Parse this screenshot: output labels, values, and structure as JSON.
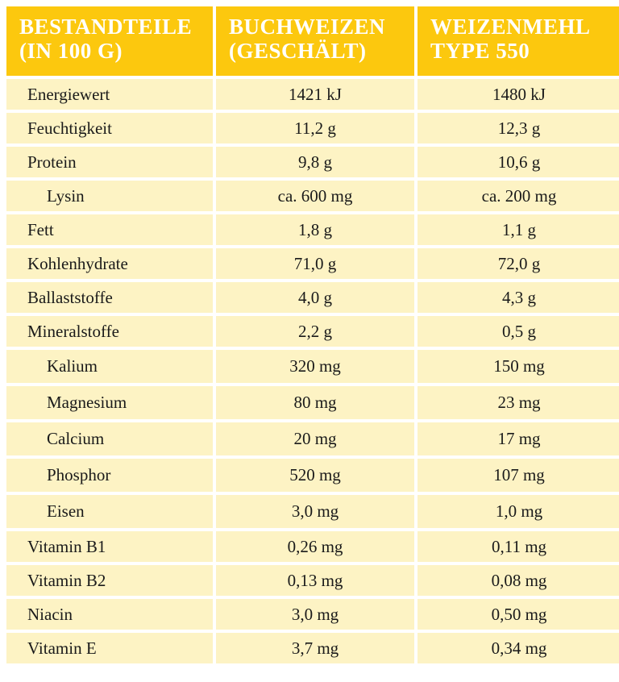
{
  "header": {
    "col1": "BESTANDTEILE (IN 100 G)",
    "col2": "BUCHWEIZEN (GESCHÄLT)",
    "col3": "WEIZENMEHL TYPE 550"
  },
  "rows": [
    {
      "label": "Energiewert",
      "buchweizen": "1421 kJ",
      "weizenmehl": "1480 kJ",
      "indent": false
    },
    {
      "label": "Feuchtigkeit",
      "buchweizen": "11,2 g",
      "weizenmehl": "12,3 g",
      "indent": false
    },
    {
      "label": "Protein",
      "buchweizen": "9,8 g",
      "weizenmehl": "10,6 g",
      "indent": false
    },
    {
      "label": "Lysin",
      "buchweizen": "ca. 600 mg",
      "weizenmehl": "ca. 200 mg",
      "indent": true
    },
    {
      "label": "Fett",
      "buchweizen": "1,8 g",
      "weizenmehl": "1,1 g",
      "indent": false
    },
    {
      "label": "Kohlenhydrate",
      "buchweizen": "71,0 g",
      "weizenmehl": "72,0 g",
      "indent": false
    },
    {
      "label": "Ballaststoffe",
      "buchweizen": "4,0 g",
      "weizenmehl": "4,3 g",
      "indent": false
    },
    {
      "label": "Mineralstoffe",
      "buchweizen": "2,2 g",
      "weizenmehl": "0,5 g",
      "indent": false
    },
    {
      "label": "Kalium",
      "buchweizen": "320 mg",
      "weizenmehl": "150 mg",
      "indent": true
    },
    {
      "label": "Magnesium",
      "buchweizen": "80 mg",
      "weizenmehl": "23 mg",
      "indent": true
    },
    {
      "label": "Calcium",
      "buchweizen": "20 mg",
      "weizenmehl": "17 mg",
      "indent": true
    },
    {
      "label": "Phosphor",
      "buchweizen": "520 mg",
      "weizenmehl": "107 mg",
      "indent": true
    },
    {
      "label": "Eisen",
      "buchweizen": "3,0 mg",
      "weizenmehl": "1,0 mg",
      "indent": true
    },
    {
      "label": "Vitamin B1",
      "buchweizen": "0,26 mg",
      "weizenmehl": "0,11 mg",
      "indent": false
    },
    {
      "label": "Vitamin B2",
      "buchweizen": "0,13 mg",
      "weizenmehl": "0,08 mg",
      "indent": false
    },
    {
      "label": "Niacin",
      "buchweizen": "3,0 mg",
      "weizenmehl": "0,50 mg",
      "indent": false
    },
    {
      "label": "Vitamin E",
      "buchweizen": "3,7 mg",
      "weizenmehl": "0,34 mg",
      "indent": false
    }
  ],
  "colors": {
    "header_bg": "#fcc80e",
    "header_text": "#ffffff",
    "row_bg": "#fdf3c4",
    "text": "#1a1a1a"
  }
}
